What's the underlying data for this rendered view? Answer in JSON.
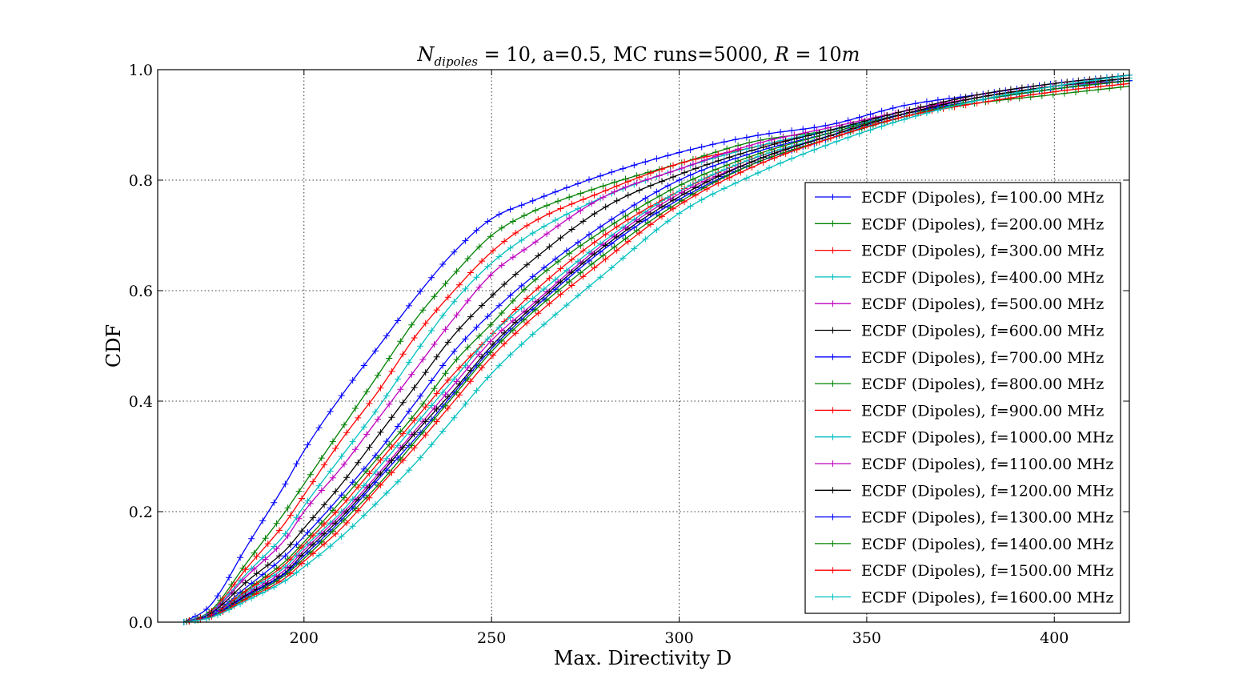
{
  "chart_data": {
    "type": "line",
    "title": {
      "main": "N",
      "sub": "dipoles",
      "rest1": " = 10, a=0.5, MC runs=5000, ",
      "var": "R",
      "rest2": " = 10",
      "unit": "m"
    },
    "xlabel": "Max. Directivity D",
    "ylabel": "CDF",
    "xlim": [
      161,
      420
    ],
    "ylim": [
      0.0,
      1.0
    ],
    "xticks": [
      200,
      250,
      300,
      350,
      400
    ],
    "yticks": [
      0.0,
      0.2,
      0.4,
      0.6,
      0.8,
      1.0
    ],
    "xtick_labels": [
      "200",
      "250",
      "300",
      "350",
      "400"
    ],
    "ytick_labels": [
      "0.0",
      "0.2",
      "0.4",
      "0.6",
      "0.8",
      "1.0"
    ],
    "grid": true,
    "legend_position": "right",
    "colors": {
      "blue": "#0000ff",
      "green": "#008000",
      "red": "#ff0000",
      "cyan": "#00bfbf",
      "magenta": "#bf00bf",
      "black": "#000000"
    },
    "series": [
      {
        "name": "ECDF (Dipoles), f=100.00 MHz",
        "color": "blue",
        "x": [
          168,
          175,
          185,
          195,
          200,
          210,
          220,
          230,
          240,
          250,
          260,
          280,
          300,
          320,
          340,
          360,
          380,
          400,
          420
        ],
        "y": [
          0,
          0.03,
          0.14,
          0.25,
          0.31,
          0.41,
          0.5,
          0.59,
          0.67,
          0.73,
          0.76,
          0.81,
          0.85,
          0.88,
          0.9,
          0.935,
          0.955,
          0.975,
          0.99
        ]
      },
      {
        "name": "ECDF (Dipoles), f=200.00 MHz",
        "color": "green",
        "x": [
          168,
          175,
          185,
          195,
          200,
          210,
          220,
          230,
          240,
          250,
          260,
          280,
          300,
          320,
          340,
          360,
          380,
          400,
          420
        ],
        "y": [
          0,
          0.02,
          0.11,
          0.2,
          0.25,
          0.35,
          0.45,
          0.55,
          0.63,
          0.7,
          0.74,
          0.79,
          0.83,
          0.87,
          0.89,
          0.92,
          0.94,
          0.955,
          0.97
        ]
      },
      {
        "name": "ECDF (Dipoles), f=300.00 MHz",
        "color": "red",
        "x": [
          168,
          175,
          185,
          195,
          200,
          210,
          220,
          230,
          240,
          250,
          260,
          280,
          300,
          320,
          340,
          360,
          380,
          400,
          420
        ],
        "y": [
          0,
          0.018,
          0.1,
          0.18,
          0.23,
          0.33,
          0.42,
          0.52,
          0.6,
          0.67,
          0.72,
          0.78,
          0.83,
          0.86,
          0.89,
          0.925,
          0.95,
          0.97,
          0.985
        ]
      },
      {
        "name": "ECDF (Dipoles), f=400.00 MHz",
        "color": "cyan",
        "x": [
          168,
          175,
          185,
          195,
          200,
          210,
          220,
          230,
          240,
          250,
          260,
          280,
          300,
          320,
          340,
          360,
          380,
          400,
          420
        ],
        "y": [
          0,
          0.017,
          0.09,
          0.16,
          0.21,
          0.3,
          0.39,
          0.49,
          0.58,
          0.65,
          0.7,
          0.77,
          0.82,
          0.86,
          0.89,
          0.92,
          0.945,
          0.965,
          0.985
        ]
      },
      {
        "name": "ECDF (Dipoles), f=500.00 MHz",
        "color": "magenta",
        "x": [
          168,
          175,
          185,
          195,
          200,
          210,
          220,
          230,
          240,
          250,
          260,
          280,
          300,
          320,
          340,
          360,
          380,
          400,
          420
        ],
        "y": [
          0,
          0.016,
          0.085,
          0.15,
          0.2,
          0.28,
          0.37,
          0.46,
          0.55,
          0.63,
          0.68,
          0.77,
          0.82,
          0.865,
          0.895,
          0.925,
          0.95,
          0.97,
          0.98
        ]
      },
      {
        "name": "ECDF (Dipoles), f=600.00 MHz",
        "color": "black",
        "x": [
          168,
          175,
          185,
          195,
          200,
          210,
          220,
          230,
          240,
          250,
          260,
          280,
          300,
          320,
          340,
          360,
          380,
          400,
          420
        ],
        "y": [
          0,
          0.015,
          0.075,
          0.13,
          0.17,
          0.25,
          0.34,
          0.43,
          0.52,
          0.59,
          0.65,
          0.75,
          0.81,
          0.855,
          0.89,
          0.925,
          0.955,
          0.975,
          0.99
        ]
      },
      {
        "name": "ECDF (Dipoles), f=700.00 MHz",
        "color": "blue",
        "x": [
          168,
          175,
          185,
          195,
          200,
          210,
          220,
          230,
          240,
          250,
          260,
          280,
          300,
          320,
          340,
          360,
          380,
          400,
          420
        ],
        "y": [
          0,
          0.013,
          0.065,
          0.12,
          0.155,
          0.23,
          0.31,
          0.4,
          0.49,
          0.56,
          0.62,
          0.72,
          0.8,
          0.85,
          0.885,
          0.92,
          0.945,
          0.965,
          0.98
        ]
      },
      {
        "name": "ECDF (Dipoles), f=800.00 MHz",
        "color": "green",
        "x": [
          168,
          175,
          185,
          195,
          200,
          210,
          220,
          230,
          240,
          250,
          260,
          280,
          300,
          320,
          340,
          360,
          380,
          400,
          420
        ],
        "y": [
          0,
          0.012,
          0.06,
          0.11,
          0.145,
          0.22,
          0.3,
          0.38,
          0.47,
          0.54,
          0.61,
          0.71,
          0.79,
          0.845,
          0.885,
          0.92,
          0.95,
          0.97,
          0.985
        ]
      },
      {
        "name": "ECDF (Dipoles), f=900.00 MHz",
        "color": "red",
        "x": [
          168,
          175,
          185,
          195,
          200,
          210,
          220,
          230,
          240,
          250,
          260,
          280,
          300,
          320,
          340,
          360,
          380,
          400,
          420
        ],
        "y": [
          0,
          0.012,
          0.058,
          0.105,
          0.14,
          0.21,
          0.29,
          0.37,
          0.45,
          0.52,
          0.59,
          0.7,
          0.78,
          0.84,
          0.88,
          0.92,
          0.95,
          0.97,
          0.985
        ]
      },
      {
        "name": "ECDF (Dipoles), f=1000.00 MHz",
        "color": "cyan",
        "x": [
          168,
          175,
          185,
          195,
          200,
          210,
          220,
          230,
          240,
          250,
          260,
          280,
          300,
          320,
          340,
          360,
          380,
          400,
          420
        ],
        "y": [
          0,
          0.011,
          0.055,
          0.1,
          0.135,
          0.2,
          0.28,
          0.36,
          0.44,
          0.52,
          0.58,
          0.69,
          0.78,
          0.84,
          0.88,
          0.915,
          0.945,
          0.965,
          0.98
        ]
      },
      {
        "name": "ECDF (Dipoles), f=1100.00 MHz",
        "color": "magenta",
        "x": [
          168,
          175,
          185,
          195,
          200,
          210,
          220,
          230,
          240,
          250,
          260,
          280,
          300,
          320,
          340,
          360,
          380,
          400,
          420
        ],
        "y": [
          0,
          0.011,
          0.052,
          0.095,
          0.13,
          0.195,
          0.27,
          0.35,
          0.43,
          0.51,
          0.57,
          0.685,
          0.775,
          0.835,
          0.88,
          0.92,
          0.95,
          0.97,
          0.985
        ]
      },
      {
        "name": "ECDF (Dipoles), f=1200.00 MHz",
        "color": "black",
        "x": [
          168,
          175,
          185,
          195,
          200,
          210,
          220,
          230,
          240,
          250,
          260,
          280,
          300,
          320,
          340,
          360,
          380,
          400,
          420
        ],
        "y": [
          0,
          0.01,
          0.05,
          0.09,
          0.125,
          0.19,
          0.265,
          0.345,
          0.42,
          0.5,
          0.565,
          0.68,
          0.77,
          0.835,
          0.88,
          0.92,
          0.95,
          0.97,
          0.985
        ]
      },
      {
        "name": "ECDF (Dipoles), f=1300.00 MHz",
        "color": "blue",
        "x": [
          168,
          175,
          185,
          195,
          200,
          210,
          220,
          230,
          240,
          250,
          260,
          280,
          300,
          320,
          340,
          360,
          380,
          400,
          420
        ],
        "y": [
          0,
          0.01,
          0.048,
          0.088,
          0.12,
          0.185,
          0.26,
          0.335,
          0.415,
          0.495,
          0.56,
          0.675,
          0.765,
          0.83,
          0.875,
          0.915,
          0.945,
          0.965,
          0.98
        ]
      },
      {
        "name": "ECDF (Dipoles), f=1400.00 MHz",
        "color": "green",
        "x": [
          168,
          175,
          185,
          195,
          200,
          210,
          220,
          230,
          240,
          250,
          260,
          280,
          300,
          320,
          340,
          360,
          380,
          400,
          420
        ],
        "y": [
          0,
          0.009,
          0.045,
          0.085,
          0.115,
          0.18,
          0.25,
          0.33,
          0.41,
          0.49,
          0.555,
          0.665,
          0.76,
          0.83,
          0.875,
          0.915,
          0.945,
          0.965,
          0.98
        ]
      },
      {
        "name": "ECDF (Dipoles), f=1500.00 MHz",
        "color": "red",
        "x": [
          168,
          175,
          185,
          195,
          200,
          210,
          220,
          230,
          240,
          250,
          260,
          280,
          300,
          320,
          340,
          360,
          380,
          400,
          420
        ],
        "y": [
          0,
          0.009,
          0.043,
          0.08,
          0.11,
          0.17,
          0.245,
          0.32,
          0.4,
          0.48,
          0.545,
          0.655,
          0.755,
          0.825,
          0.875,
          0.915,
          0.94,
          0.96,
          0.975
        ]
      },
      {
        "name": "ECDF (Dipoles), f=1600.00 MHz",
        "color": "cyan",
        "x": [
          168,
          175,
          185,
          195,
          200,
          210,
          220,
          230,
          240,
          250,
          260,
          280,
          300,
          320,
          340,
          360,
          380,
          400,
          420
        ],
        "y": [
          0,
          0.008,
          0.04,
          0.075,
          0.1,
          0.155,
          0.22,
          0.29,
          0.37,
          0.45,
          0.515,
          0.63,
          0.74,
          0.81,
          0.865,
          0.91,
          0.945,
          0.97,
          0.99
        ]
      }
    ]
  }
}
